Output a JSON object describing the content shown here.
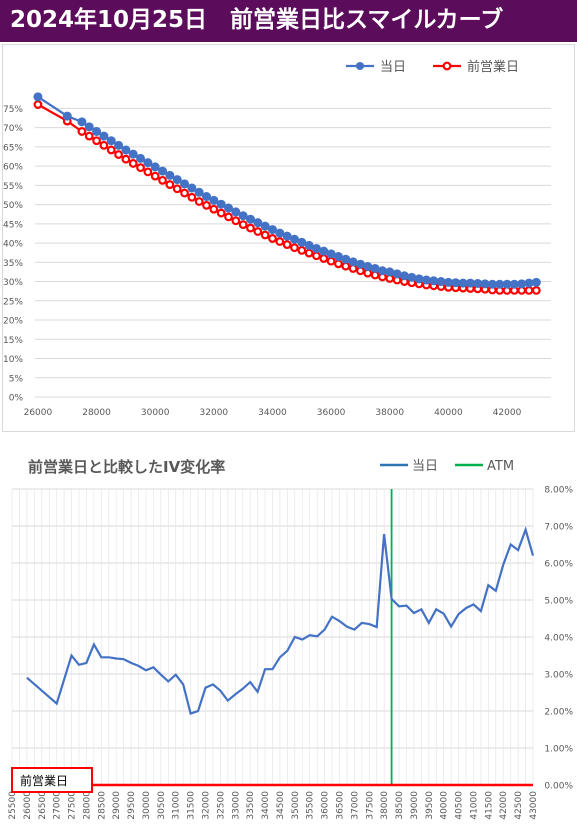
{
  "banner": {
    "title": "2024年10月25日　前営業日比スマイルカーブ"
  },
  "colors": {
    "banner_bg": "#5b0d5b",
    "today": "#4472c4",
    "prev": "#ff0000",
    "atm": "#00b050",
    "grid": "#d9d9d9",
    "axis_text": "#595959"
  },
  "chart_data": [
    {
      "type": "line",
      "title": "",
      "legend_position": "top-right",
      "x_ticks": [
        "26000",
        "28000",
        "30000",
        "32000",
        "34000",
        "36000",
        "38000",
        "40000",
        "42000"
      ],
      "y_ticks": [
        "0%",
        "5%",
        "10%",
        "15%",
        "20%",
        "25%",
        "30%",
        "35%",
        "40%",
        "45%",
        "50%",
        "55%",
        "60%",
        "65%",
        "70%",
        "75%"
      ],
      "xlim": [
        25900,
        43500
      ],
      "ylim": [
        0,
        0.79
      ],
      "grid": true,
      "x": [
        26000,
        27000,
        27500,
        27750,
        28000,
        28250,
        28500,
        28750,
        29000,
        29250,
        29500,
        29750,
        30000,
        30250,
        30500,
        30750,
        31000,
        31250,
        31500,
        31750,
        32000,
        32250,
        32500,
        32750,
        33000,
        33250,
        33500,
        33750,
        34000,
        34250,
        34500,
        34750,
        35000,
        35250,
        35500,
        35750,
        36000,
        36250,
        36500,
        36750,
        37000,
        37250,
        37500,
        37750,
        38000,
        38250,
        38500,
        38750,
        39000,
        39250,
        39500,
        39750,
        40000,
        40250,
        40500,
        40750,
        41000,
        41250,
        41500,
        41750,
        42000,
        42250,
        42500,
        42750,
        43000
      ],
      "series": [
        {
          "name": "当日",
          "color": "#4472c4",
          "values": [
            0.78,
            0.73,
            0.715,
            0.702,
            0.69,
            0.678,
            0.666,
            0.654,
            0.642,
            0.631,
            0.62,
            0.609,
            0.598,
            0.587,
            0.576,
            0.565,
            0.554,
            0.543,
            0.532,
            0.521,
            0.511,
            0.501,
            0.491,
            0.481,
            0.471,
            0.462,
            0.453,
            0.444,
            0.435,
            0.426,
            0.418,
            0.41,
            0.402,
            0.394,
            0.386,
            0.379,
            0.372,
            0.365,
            0.358,
            0.351,
            0.345,
            0.339,
            0.334,
            0.328,
            0.325,
            0.32,
            0.315,
            0.311,
            0.307,
            0.304,
            0.302,
            0.3,
            0.298,
            0.297,
            0.296,
            0.296,
            0.295,
            0.294,
            0.293,
            0.293,
            0.293,
            0.293,
            0.294,
            0.296,
            0.298
          ]
        },
        {
          "name": "前営業日",
          "color": "#ff0000",
          "values": [
            0.76,
            0.717,
            0.69,
            0.678,
            0.666,
            0.654,
            0.642,
            0.63,
            0.618,
            0.607,
            0.596,
            0.585,
            0.574,
            0.563,
            0.552,
            0.541,
            0.53,
            0.519,
            0.508,
            0.498,
            0.488,
            0.478,
            0.468,
            0.458,
            0.448,
            0.439,
            0.43,
            0.421,
            0.412,
            0.404,
            0.396,
            0.388,
            0.381,
            0.374,
            0.367,
            0.36,
            0.353,
            0.346,
            0.34,
            0.334,
            0.328,
            0.322,
            0.317,
            0.312,
            0.308,
            0.304,
            0.3,
            0.297,
            0.294,
            0.291,
            0.289,
            0.287,
            0.285,
            0.284,
            0.283,
            0.282,
            0.281,
            0.28,
            0.278,
            0.277,
            0.277,
            0.277,
            0.277,
            0.277,
            0.277
          ]
        }
      ]
    },
    {
      "type": "line",
      "title": "前営業日と比較したIV変化率",
      "legend_position": "top-right",
      "x_ticks": [
        "25500",
        "26000",
        "26500",
        "27000",
        "27500",
        "28000",
        "28500",
        "29000",
        "29500",
        "30000",
        "30500",
        "31000",
        "31500",
        "32000",
        "32500",
        "33000",
        "33500",
        "34000",
        "34500",
        "35000",
        "35500",
        "36000",
        "36500",
        "37000",
        "37500",
        "38000",
        "38500",
        "39000",
        "39500",
        "40000",
        "40500",
        "41000",
        "41500",
        "42000",
        "42500",
        "43000"
      ],
      "y_ticks": [
        "0.00%",
        "1.00%",
        "2.00%",
        "3.00%",
        "4.00%",
        "5.00%",
        "6.00%",
        "7.00%",
        "8.00%"
      ],
      "xlim": [
        25500,
        43000
      ],
      "ylim": [
        0,
        0.08
      ],
      "grid": true,
      "atm": {
        "name": "ATM",
        "x": 38250,
        "color": "#00b050"
      },
      "baseline": {
        "name": "前営業日",
        "value": 0,
        "color": "#ff0000"
      },
      "x": [
        26000,
        27000,
        27500,
        27750,
        28000,
        28250,
        28500,
        28750,
        29000,
        29250,
        29500,
        29750,
        30000,
        30250,
        30500,
        30750,
        31000,
        31250,
        31500,
        31750,
        32000,
        32250,
        32500,
        32750,
        33000,
        33250,
        33500,
        33750,
        34000,
        34250,
        34500,
        34750,
        35000,
        35250,
        35500,
        35750,
        36000,
        36250,
        36500,
        36750,
        37000,
        37250,
        37500,
        37750,
        38000,
        38250,
        38500,
        38750,
        39000,
        39250,
        39500,
        39750,
        40000,
        40250,
        40500,
        40750,
        41000,
        41250,
        41500,
        41750,
        42000,
        42250,
        42500,
        42750,
        43000
      ],
      "series": [
        {
          "name": "当日",
          "color": "#2e75b6",
          "values": [
            0.029,
            0.022,
            0.035,
            0.0325,
            0.033,
            0.038,
            0.0345,
            0.0345,
            0.0342,
            0.034,
            0.033,
            0.0322,
            0.031,
            0.0318,
            0.0298,
            0.028,
            0.0298,
            0.0272,
            0.0193,
            0.02,
            0.0263,
            0.0272,
            0.0255,
            0.0228,
            0.0245,
            0.026,
            0.0278,
            0.0252,
            0.0313,
            0.0313,
            0.0345,
            0.0363,
            0.04,
            0.0393,
            0.0405,
            0.0402,
            0.042,
            0.0455,
            0.0443,
            0.0428,
            0.042,
            0.0438,
            0.0435,
            0.0427,
            0.0678,
            0.0503,
            0.0483,
            0.0485,
            0.0465,
            0.0475,
            0.0438,
            0.0475,
            0.0463,
            0.0428,
            0.0462,
            0.0478,
            0.0488,
            0.047,
            0.054,
            0.0525,
            0.0595,
            0.065,
            0.0635,
            0.069,
            0.062
          ]
        }
      ]
    }
  ]
}
